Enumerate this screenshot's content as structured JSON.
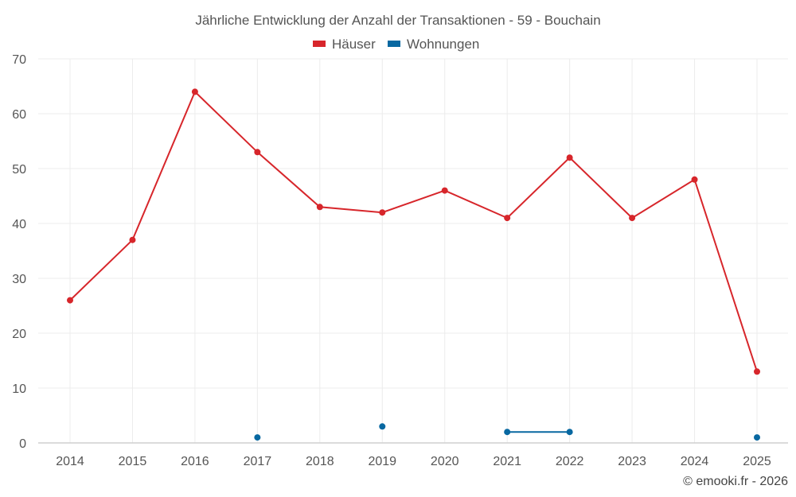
{
  "chart_data": {
    "type": "line",
    "title": "Jährliche Entwicklung der Anzahl der Transaktionen - 59 - Bouchain",
    "categories": [
      "2014",
      "2015",
      "2016",
      "2017",
      "2018",
      "2019",
      "2020",
      "2021",
      "2022",
      "2023",
      "2024",
      "2025"
    ],
    "series": [
      {
        "name": "Häuser",
        "color": "#d7262b",
        "values": [
          26,
          37,
          64,
          53,
          43,
          42,
          46,
          41,
          52,
          41,
          48,
          13
        ]
      },
      {
        "name": "Wohnungen",
        "color": "#0868a1",
        "values": [
          null,
          null,
          null,
          1,
          null,
          3,
          null,
          2,
          2,
          null,
          null,
          1
        ]
      }
    ],
    "ylim": [
      0,
      70
    ],
    "yticks": [
      "0",
      "10",
      "20",
      "30",
      "40",
      "50",
      "60",
      "70"
    ],
    "grid": true,
    "legend": "top-center",
    "xlabel": "",
    "ylabel": ""
  },
  "credit": "© emooki.fr - 2026"
}
